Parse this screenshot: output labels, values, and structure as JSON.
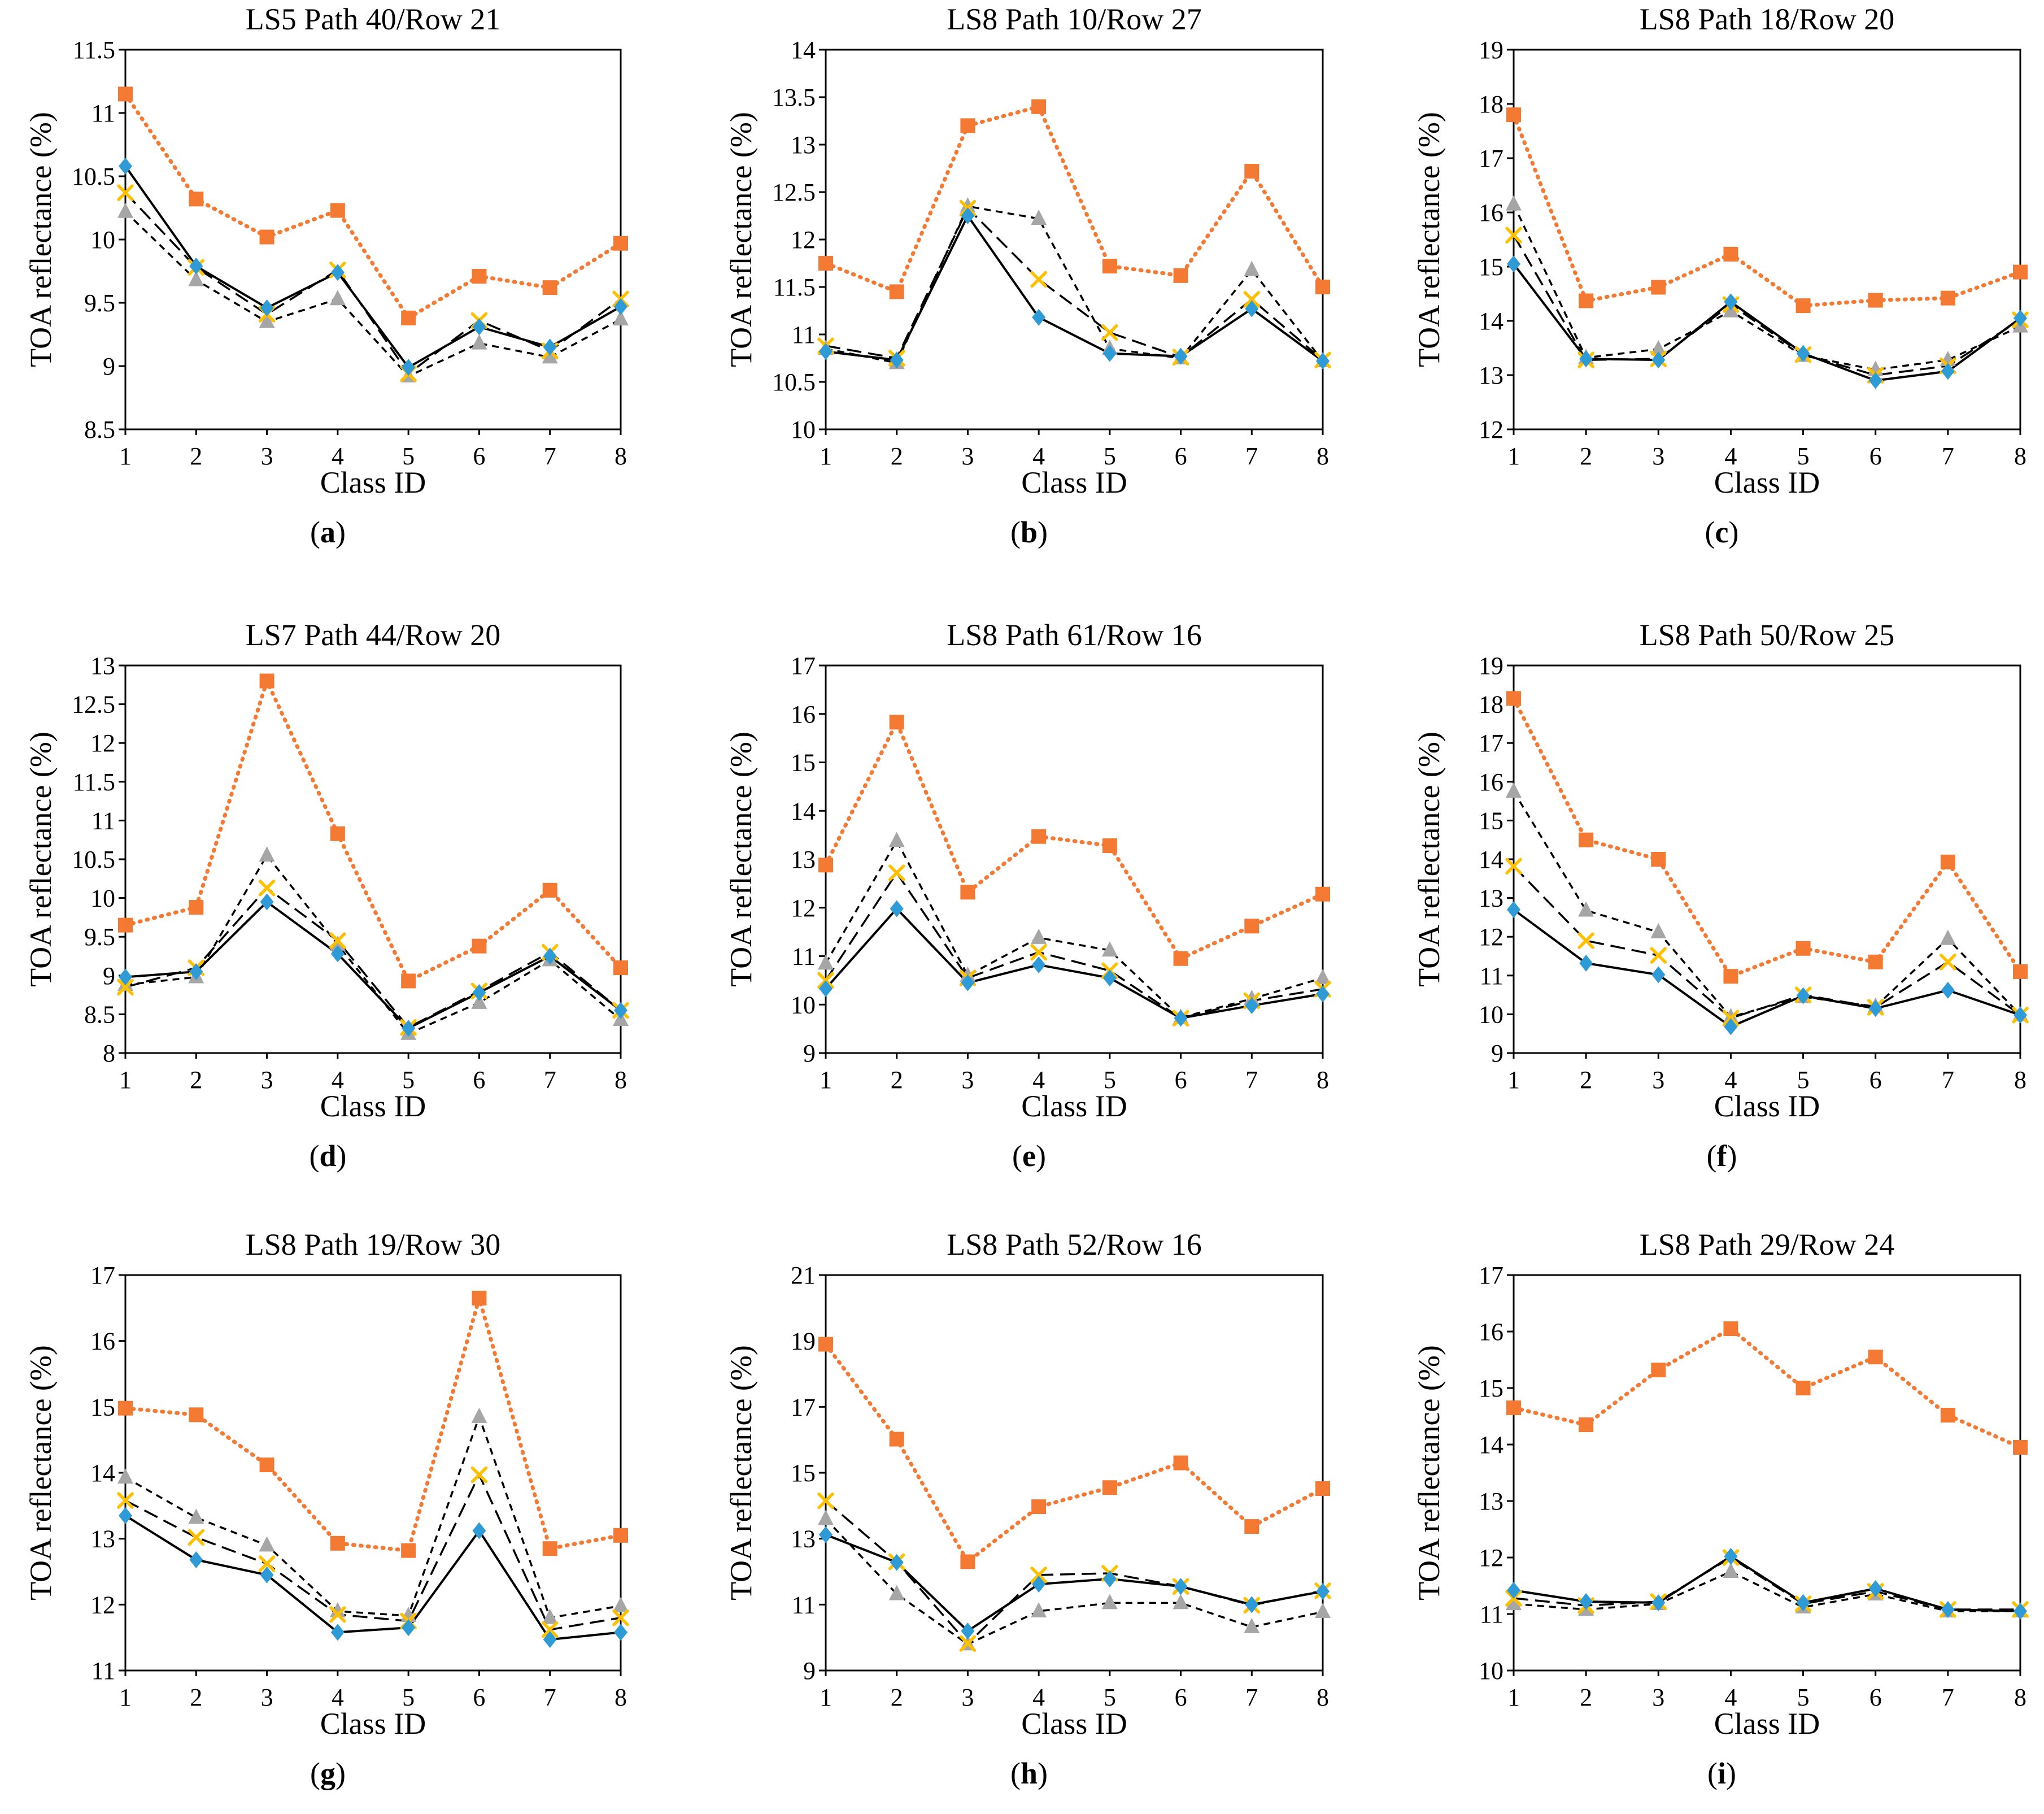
{
  "figure": {
    "panels_rows": 3,
    "panels_cols": 3
  },
  "colors": {
    "orange": "#F47A33",
    "gray": "#A6A6A6",
    "gold": "#FFC000",
    "blue": "#2E9BD6",
    "axis": "#000000"
  },
  "chart_data": [
    {
      "type": "line",
      "title": "LS5 Path 40/Row 21",
      "letter": "a",
      "xlabel": "Class ID",
      "ylabel": "TOA reflectance (%)",
      "categories": [
        "1",
        "2",
        "3",
        "4",
        "5",
        "6",
        "7",
        "8"
      ],
      "ylim": [
        8.5,
        11.5
      ],
      "yticks": [
        "8.5",
        "9",
        "9.5",
        "10",
        "10.5",
        "11",
        "11.5"
      ],
      "series": [
        {
          "name": "orange-square-dotted",
          "marker": "square",
          "values": [
            11.15,
            10.32,
            10.02,
            10.23,
            9.38,
            9.71,
            9.62,
            9.97
          ]
        },
        {
          "name": "gray-triangle-dashed",
          "marker": "triangle",
          "values": [
            10.22,
            9.68,
            9.35,
            9.53,
            8.92,
            9.18,
            9.07,
            9.37
          ]
        },
        {
          "name": "gold-x-longdash",
          "marker": "x",
          "values": [
            10.37,
            9.78,
            9.41,
            9.76,
            8.94,
            9.36,
            9.12,
            9.53
          ]
        },
        {
          "name": "blue-diamond-solid",
          "marker": "diamond",
          "values": [
            10.58,
            9.79,
            9.46,
            9.74,
            8.99,
            9.31,
            9.15,
            9.47
          ]
        }
      ]
    },
    {
      "type": "line",
      "title": "LS8 Path 10/Row 27",
      "letter": "b",
      "xlabel": "Class ID",
      "ylabel": "TOA reflectance (%)",
      "categories": [
        "1",
        "2",
        "3",
        "4",
        "5",
        "6",
        "7",
        "8"
      ],
      "ylim": [
        10,
        14
      ],
      "yticks": [
        "10",
        "10.5",
        "11",
        "11.5",
        "12",
        "12.5",
        "13",
        "13.5",
        "14"
      ],
      "series": [
        {
          "name": "orange-square-dotted",
          "marker": "square",
          "values": [
            11.75,
            11.45,
            13.2,
            13.4,
            11.72,
            11.62,
            12.72,
            11.5
          ]
        },
        {
          "name": "gray-triangle-dashed",
          "marker": "triangle",
          "values": [
            10.85,
            10.7,
            12.35,
            12.22,
            10.85,
            10.75,
            11.68,
            10.72
          ]
        },
        {
          "name": "gold-x-longdash",
          "marker": "x",
          "values": [
            10.88,
            10.75,
            12.33,
            11.58,
            11.02,
            10.76,
            11.37,
            10.73
          ]
        },
        {
          "name": "blue-diamond-solid",
          "marker": "diamond",
          "values": [
            10.82,
            10.73,
            12.25,
            11.18,
            10.8,
            10.77,
            11.27,
            10.72
          ]
        }
      ]
    },
    {
      "type": "line",
      "title": "LS8 Path 18/Row 20",
      "letter": "c",
      "xlabel": "Class ID",
      "ylabel": "TOA reflectance (%)",
      "categories": [
        "1",
        "2",
        "3",
        "4",
        "5",
        "6",
        "7",
        "8"
      ],
      "ylim": [
        12,
        19
      ],
      "yticks": [
        "12",
        "13",
        "14",
        "15",
        "16",
        "17",
        "18",
        "19"
      ],
      "series": [
        {
          "name": "orange-square-dotted",
          "marker": "square",
          "values": [
            17.8,
            14.37,
            14.62,
            15.23,
            14.28,
            14.38,
            14.42,
            14.9
          ]
        },
        {
          "name": "gray-triangle-dashed",
          "marker": "triangle",
          "values": [
            16.15,
            13.32,
            13.48,
            14.18,
            13.36,
            13.1,
            13.28,
            13.9
          ]
        },
        {
          "name": "gold-x-longdash",
          "marker": "x",
          "values": [
            15.58,
            13.28,
            13.3,
            14.3,
            13.38,
            13.0,
            13.17,
            14.02
          ]
        },
        {
          "name": "blue-diamond-solid",
          "marker": "diamond",
          "values": [
            15.05,
            13.3,
            13.28,
            14.35,
            13.4,
            12.9,
            13.07,
            14.05
          ]
        }
      ]
    },
    {
      "type": "line",
      "title": "LS7 Path 44/Row 20",
      "letter": "d",
      "xlabel": "Class ID",
      "ylabel": "TOA reflectance (%)",
      "categories": [
        "1",
        "2",
        "3",
        "4",
        "5",
        "6",
        "7",
        "8"
      ],
      "ylim": [
        8,
        13
      ],
      "yticks": [
        "8",
        "8.5",
        "9",
        "9.5",
        "10",
        "10.5",
        "11",
        "11.5",
        "12",
        "12.5",
        "13"
      ],
      "series": [
        {
          "name": "orange-square-dotted",
          "marker": "square",
          "values": [
            9.65,
            9.88,
            12.8,
            10.83,
            8.93,
            9.38,
            10.1,
            9.1
          ]
        },
        {
          "name": "gray-triangle-dashed",
          "marker": "triangle",
          "values": [
            8.88,
            8.98,
            10.55,
            9.4,
            8.25,
            8.65,
            9.2,
            8.43
          ]
        },
        {
          "name": "gold-x-longdash",
          "marker": "x",
          "values": [
            8.85,
            9.1,
            10.13,
            9.45,
            8.33,
            8.8,
            9.3,
            8.55
          ]
        },
        {
          "name": "blue-diamond-solid",
          "marker": "diamond",
          "values": [
            8.98,
            9.05,
            9.95,
            9.28,
            8.32,
            8.78,
            9.25,
            8.55
          ]
        }
      ]
    },
    {
      "type": "line",
      "title": "LS8 Path 61/Row 16",
      "letter": "e",
      "xlabel": "Class ID",
      "ylabel": "TOA reflectance (%)",
      "categories": [
        "1",
        "2",
        "3",
        "4",
        "5",
        "6",
        "7",
        "8"
      ],
      "ylim": [
        9,
        17
      ],
      "yticks": [
        "9",
        "10",
        "11",
        "12",
        "13",
        "14",
        "15",
        "16",
        "17"
      ],
      "series": [
        {
          "name": "orange-square-dotted",
          "marker": "square",
          "values": [
            12.88,
            15.83,
            12.32,
            13.47,
            13.28,
            10.95,
            11.62,
            12.28
          ]
        },
        {
          "name": "gray-triangle-dashed",
          "marker": "triangle",
          "values": [
            10.85,
            13.38,
            10.6,
            11.38,
            11.12,
            9.73,
            10.12,
            10.55
          ]
        },
        {
          "name": "gold-x-longdash",
          "marker": "x",
          "values": [
            10.5,
            12.72,
            10.55,
            11.08,
            10.7,
            9.72,
            10.08,
            10.32
          ]
        },
        {
          "name": "blue-diamond-solid",
          "marker": "diamond",
          "values": [
            10.33,
            11.98,
            10.45,
            10.82,
            10.55,
            9.72,
            9.98,
            10.22
          ]
        }
      ]
    },
    {
      "type": "line",
      "title": "LS8 Path 50/Row 25",
      "letter": "f",
      "xlabel": "Class ID",
      "ylabel": "TOA reflectance (%)",
      "categories": [
        "1",
        "2",
        "3",
        "4",
        "5",
        "6",
        "7",
        "8"
      ],
      "ylim": [
        9,
        19
      ],
      "yticks": [
        "9",
        "10",
        "11",
        "12",
        "13",
        "14",
        "15",
        "16",
        "17",
        "18",
        "19"
      ],
      "series": [
        {
          "name": "orange-square-dotted",
          "marker": "square",
          "values": [
            18.15,
            14.5,
            14.0,
            10.98,
            11.7,
            11.35,
            13.93,
            11.1
          ]
        },
        {
          "name": "gray-triangle-dashed",
          "marker": "triangle",
          "values": [
            15.75,
            12.68,
            12.12,
            9.93,
            10.45,
            10.2,
            11.95,
            9.98
          ]
        },
        {
          "name": "gold-x-longdash",
          "marker": "x",
          "values": [
            13.82,
            11.9,
            11.52,
            9.9,
            10.5,
            10.18,
            11.35,
            9.98
          ]
        },
        {
          "name": "blue-diamond-solid",
          "marker": "diamond",
          "values": [
            12.7,
            11.32,
            11.02,
            9.68,
            10.48,
            10.15,
            10.62,
            9.98
          ]
        }
      ]
    },
    {
      "type": "line",
      "title": "LS8 Path 19/Row 30",
      "letter": "g",
      "xlabel": "Class ID",
      "ylabel": "TOA reflectance (%)",
      "categories": [
        "1",
        "2",
        "3",
        "4",
        "5",
        "6",
        "7",
        "8"
      ],
      "ylim": [
        11,
        17
      ],
      "yticks": [
        "11",
        "12",
        "13",
        "14",
        "15",
        "16",
        "17"
      ],
      "series": [
        {
          "name": "orange-square-dotted",
          "marker": "square",
          "values": [
            14.98,
            14.88,
            14.12,
            12.93,
            12.82,
            16.65,
            12.85,
            13.05
          ]
        },
        {
          "name": "gray-triangle-dashed",
          "marker": "triangle",
          "values": [
            13.93,
            13.32,
            12.9,
            11.9,
            11.83,
            14.85,
            11.8,
            11.98
          ]
        },
        {
          "name": "gold-x-longdash",
          "marker": "x",
          "values": [
            13.58,
            13.02,
            12.62,
            11.85,
            11.75,
            13.97,
            11.62,
            11.8
          ]
        },
        {
          "name": "blue-diamond-solid",
          "marker": "diamond",
          "values": [
            13.35,
            12.68,
            12.45,
            11.58,
            11.65,
            13.12,
            11.47,
            11.58
          ]
        }
      ]
    },
    {
      "type": "line",
      "title": "LS8 Path 52/Row 16",
      "letter": "h",
      "xlabel": "Class ID",
      "ylabel": "TOA reflectance (%)",
      "categories": [
        "1",
        "2",
        "3",
        "4",
        "5",
        "6",
        "7",
        "8"
      ],
      "ylim": [
        9,
        21
      ],
      "yticks": [
        "9",
        "11",
        "13",
        "15",
        "17",
        "19",
        "21"
      ],
      "series": [
        {
          "name": "orange-square-dotted",
          "marker": "square",
          "values": [
            18.9,
            16.02,
            12.3,
            13.97,
            14.55,
            15.3,
            13.37,
            14.52
          ]
        },
        {
          "name": "gray-triangle-dashed",
          "marker": "triangle",
          "values": [
            13.6,
            11.32,
            9.8,
            10.8,
            11.05,
            11.05,
            10.32,
            10.78
          ]
        },
        {
          "name": "gold-x-longdash",
          "marker": "x",
          "values": [
            14.15,
            12.3,
            9.82,
            11.9,
            11.95,
            11.55,
            10.98,
            11.42
          ]
        },
        {
          "name": "blue-diamond-solid",
          "marker": "diamond",
          "values": [
            13.12,
            12.28,
            10.2,
            11.62,
            11.78,
            11.55,
            11.0,
            11.4
          ]
        }
      ]
    },
    {
      "type": "line",
      "title": "LS8  Path 29/Row 24",
      "letter": "i",
      "xlabel": "Class ID",
      "ylabel": "TOA reflectance (%)",
      "categories": [
        "1",
        "2",
        "3",
        "4",
        "5",
        "6",
        "7",
        "8"
      ],
      "ylim": [
        10,
        17
      ],
      "yticks": [
        "10",
        "11",
        "12",
        "13",
        "14",
        "15",
        "16",
        "17"
      ],
      "series": [
        {
          "name": "orange-square-dotted",
          "marker": "square",
          "values": [
            14.65,
            14.35,
            15.32,
            16.05,
            15.0,
            15.55,
            14.52,
            13.95
          ]
        },
        {
          "name": "gray-triangle-dashed",
          "marker": "triangle",
          "values": [
            11.18,
            11.08,
            11.18,
            11.75,
            11.12,
            11.35,
            11.05,
            11.05
          ]
        },
        {
          "name": "gold-x-longdash",
          "marker": "x",
          "values": [
            11.28,
            11.15,
            11.22,
            12.0,
            11.18,
            11.4,
            11.08,
            11.08
          ]
        },
        {
          "name": "blue-diamond-solid",
          "marker": "diamond",
          "values": [
            11.42,
            11.22,
            11.2,
            12.02,
            11.2,
            11.45,
            11.08,
            11.05
          ]
        }
      ]
    }
  ]
}
